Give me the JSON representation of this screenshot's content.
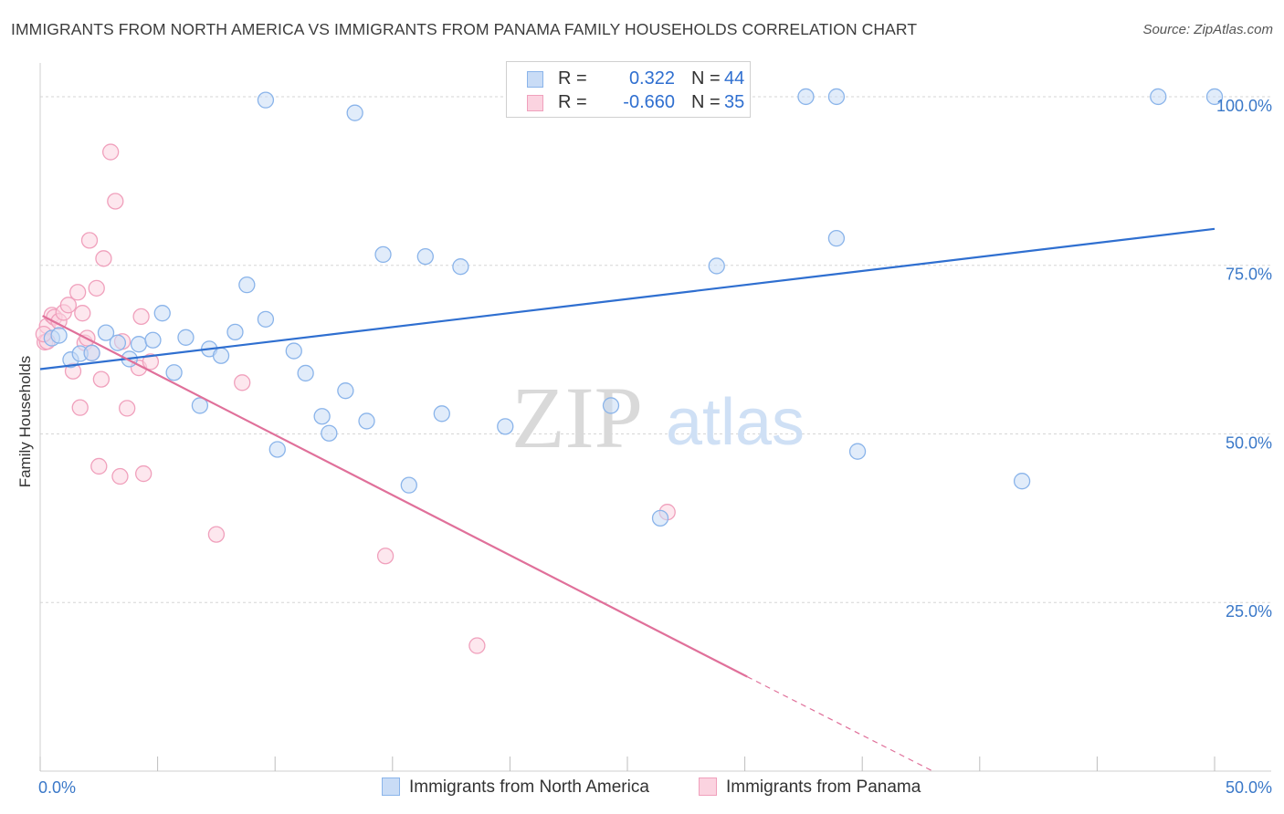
{
  "header": {
    "title": "IMMIGRANTS FROM NORTH AMERICA VS IMMIGRANTS FROM PANAMA FAMILY HOUSEHOLDS CORRELATION CHART",
    "source": "Source: ZipAtlas.com"
  },
  "watermark": {
    "zip": "ZIP",
    "atlas": "atlas"
  },
  "legend": {
    "rows": [
      {
        "r_label": "R =",
        "r_value": "0.322",
        "n_label": "N =",
        "n_value": "44",
        "color": "#8ab4ea",
        "fill": "#c9dcf6"
      },
      {
        "r_label": "R =",
        "r_value": "-0.660",
        "n_label": "N =",
        "n_value": "35",
        "color": "#f0a0bc",
        "fill": "#fbd3e0"
      }
    ]
  },
  "bottom_legend": {
    "north_america": "Immigrants from North America",
    "panama": "Immigrants from Panama"
  },
  "chart_data": {
    "type": "scatter",
    "title": "IMMIGRANTS FROM NORTH AMERICA VS IMMIGRANTS FROM PANAMA FAMILY HOUSEHOLDS CORRELATION CHART",
    "xlabel": "",
    "ylabel": "Family Households",
    "xlim": [
      0,
      50
    ],
    "ylim": [
      0,
      105
    ],
    "x_tick_labels": [
      "0.0%",
      "50.0%"
    ],
    "y_ticks": [
      25,
      50,
      75,
      100
    ],
    "y_tick_labels": [
      "25.0%",
      "50.0%",
      "75.0%",
      "100.0%"
    ],
    "grid": true,
    "legend_position": "top-center",
    "series": [
      {
        "name": "Immigrants from North America",
        "color": "#2f6fd0",
        "point_stroke": "#8ab4ea",
        "point_fill": "#c9dcf6",
        "r": 0.322,
        "n": 44,
        "trend": [
          [
            0,
            59.6
          ],
          [
            50,
            80.4
          ]
        ],
        "points": [
          [
            0.5,
            64.2
          ],
          [
            0.8,
            64.6
          ],
          [
            1.3,
            61.0
          ],
          [
            1.7,
            61.9
          ],
          [
            2.2,
            62.0
          ],
          [
            2.8,
            65.0
          ],
          [
            3.3,
            63.5
          ],
          [
            3.8,
            61.1
          ],
          [
            4.2,
            63.3
          ],
          [
            4.8,
            63.9
          ],
          [
            5.2,
            67.9
          ],
          [
            5.7,
            59.1
          ],
          [
            6.2,
            64.3
          ],
          [
            6.8,
            54.2
          ],
          [
            7.2,
            62.6
          ],
          [
            7.7,
            61.6
          ],
          [
            8.3,
            65.1
          ],
          [
            8.8,
            72.1
          ],
          [
            9.6,
            99.5
          ],
          [
            9.6,
            67.0
          ],
          [
            10.1,
            47.7
          ],
          [
            10.8,
            62.3
          ],
          [
            11.3,
            59.0
          ],
          [
            12.0,
            52.6
          ],
          [
            12.3,
            50.1
          ],
          [
            13.0,
            56.4
          ],
          [
            13.4,
            97.6
          ],
          [
            13.9,
            51.9
          ],
          [
            14.6,
            76.6
          ],
          [
            15.7,
            42.4
          ],
          [
            16.4,
            76.3
          ],
          [
            17.1,
            53.0
          ],
          [
            17.9,
            74.8
          ],
          [
            19.8,
            51.1
          ],
          [
            24.3,
            54.2
          ],
          [
            26.4,
            37.5
          ],
          [
            28.8,
            74.9
          ],
          [
            32.6,
            100.0
          ],
          [
            33.9,
            79.0
          ],
          [
            33.9,
            100.0
          ],
          [
            34.8,
            47.4
          ],
          [
            41.8,
            43.0
          ],
          [
            47.6,
            100.0
          ],
          [
            50.0,
            100.0
          ]
        ]
      },
      {
        "name": "Immigrants from Panama",
        "color": "#e0709a",
        "point_stroke": "#f0a0bc",
        "point_fill": "#fbd3e0",
        "r": -0.66,
        "n": 35,
        "trend": [
          [
            0.1,
            67.5
          ],
          [
            30.1,
            14.0
          ]
        ],
        "trend_dashed": [
          [
            30.1,
            14.0
          ],
          [
            38.0,
            0.0
          ]
        ],
        "points": [
          [
            0.2,
            63.6
          ],
          [
            0.3,
            63.7
          ],
          [
            0.3,
            66.0
          ],
          [
            0.5,
            67.6
          ],
          [
            0.6,
            67.3
          ],
          [
            0.8,
            66.7
          ],
          [
            1.0,
            68.0
          ],
          [
            1.2,
            69.1
          ],
          [
            1.4,
            59.3
          ],
          [
            1.6,
            71.0
          ],
          [
            1.7,
            53.9
          ],
          [
            1.8,
            67.9
          ],
          [
            1.9,
            63.5
          ],
          [
            2.0,
            64.2
          ],
          [
            2.1,
            78.7
          ],
          [
            2.2,
            62.0
          ],
          [
            2.4,
            71.6
          ],
          [
            2.5,
            45.2
          ],
          [
            2.6,
            58.1
          ],
          [
            2.7,
            76.0
          ],
          [
            3.0,
            91.8
          ],
          [
            3.2,
            84.5
          ],
          [
            3.4,
            43.7
          ],
          [
            3.5,
            63.7
          ],
          [
            3.7,
            53.8
          ],
          [
            4.2,
            59.8
          ],
          [
            4.3,
            67.4
          ],
          [
            4.4,
            44.1
          ],
          [
            4.7,
            60.7
          ],
          [
            7.5,
            35.1
          ],
          [
            8.6,
            57.6
          ],
          [
            14.7,
            31.9
          ],
          [
            18.6,
            18.6
          ],
          [
            26.7,
            38.4
          ],
          [
            0.15,
            64.8
          ]
        ]
      }
    ]
  }
}
